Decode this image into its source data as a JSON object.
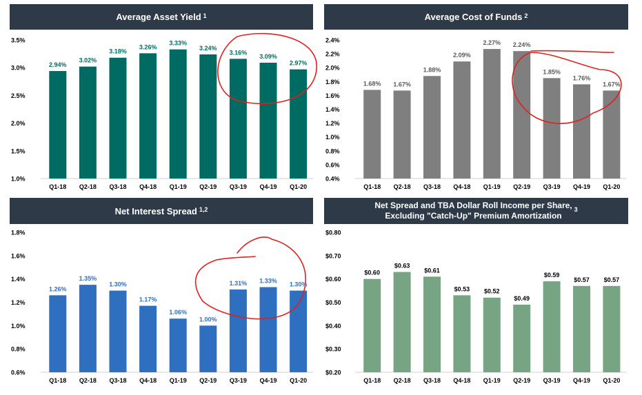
{
  "colors": {
    "header_bg": "#2e3a48",
    "annotation": "#e0201b"
  },
  "chart_data": [
    {
      "type": "bar",
      "title": "Average Asset Yield",
      "title_note": "1",
      "categories": [
        "Q1-18",
        "Q2-18",
        "Q3-18",
        "Q4-18",
        "Q1-19",
        "Q2-19",
        "Q3-19",
        "Q4-19",
        "Q1-20"
      ],
      "values": [
        2.94,
        3.02,
        3.18,
        3.26,
        3.33,
        3.24,
        3.16,
        3.09,
        2.97
      ],
      "value_labels": [
        "2.94%",
        "3.02%",
        "3.18%",
        "3.26%",
        "3.33%",
        "3.24%",
        "3.16%",
        "3.09%",
        "2.97%"
      ],
      "ylim": [
        1.0,
        3.5
      ],
      "yticks": [
        1.0,
        1.5,
        2.0,
        2.5,
        3.0,
        3.5
      ],
      "ytick_labels": [
        "1.0%",
        "1.5%",
        "2.0%",
        "2.5%",
        "3.0%",
        "3.5%"
      ],
      "bar_color": "#006b62",
      "label_color": "#006b62",
      "grid": false,
      "annotation": "hand-drawn red circle around Q3-19 to Q1-20"
    },
    {
      "type": "bar",
      "title": "Average Cost of Funds",
      "title_note": "2",
      "categories": [
        "Q1-18",
        "Q2-18",
        "Q3-18",
        "Q4-18",
        "Q1-19",
        "Q2-19",
        "Q3-19",
        "Q4-19",
        "Q1-20"
      ],
      "values": [
        1.68,
        1.67,
        1.88,
        2.09,
        2.27,
        2.24,
        1.85,
        1.76,
        1.67
      ],
      "value_labels": [
        "1.68%",
        "1.67%",
        "1.88%",
        "2.09%",
        "2.27%",
        "2.24%",
        "1.85%",
        "1.76%",
        "1.67%"
      ],
      "ylim": [
        0.4,
        2.4
      ],
      "yticks": [
        0.4,
        0.6,
        0.8,
        1.0,
        1.2,
        1.4,
        1.6,
        1.8,
        2.0,
        2.2,
        2.4
      ],
      "ytick_labels": [
        "0.4%",
        "0.6%",
        "0.8%",
        "1.0%",
        "1.2%",
        "1.4%",
        "1.6%",
        "1.8%",
        "2.0%",
        "2.2%",
        "2.4%"
      ],
      "bar_color": "#7f7f7f",
      "label_color": "#595959",
      "grid": false,
      "annotation": "hand-drawn red circle around Q2-19 to Q1-20"
    },
    {
      "type": "bar",
      "title": "Net Interest Spread",
      "title_note": "1,2",
      "categories": [
        "Q1-18",
        "Q2-18",
        "Q3-18",
        "Q4-18",
        "Q1-19",
        "Q2-19",
        "Q3-19",
        "Q4-19",
        "Q1-20"
      ],
      "values": [
        1.26,
        1.35,
        1.3,
        1.17,
        1.06,
        1.0,
        1.31,
        1.33,
        1.3
      ],
      "value_labels": [
        "1.26%",
        "1.35%",
        "1.30%",
        "1.17%",
        "1.06%",
        "1.00%",
        "1.31%",
        "1.33%",
        "1.30%"
      ],
      "ylim": [
        0.6,
        1.8
      ],
      "yticks": [
        0.6,
        0.8,
        1.0,
        1.2,
        1.4,
        1.6,
        1.8
      ],
      "ytick_labels": [
        "0.6%",
        "0.8%",
        "1.0%",
        "1.2%",
        "1.4%",
        "1.6%",
        "1.8%"
      ],
      "bar_color": "#2f6fbf",
      "label_color": "#2f6fbf",
      "grid": false,
      "annotation": "hand-drawn red circle around Q3-19 to Q1-20"
    },
    {
      "type": "bar",
      "title": "Net Spread and TBA Dollar Roll Income per Share,\nExcluding \"Catch-Up\" Premium Amortization",
      "title_note": "3",
      "categories": [
        "Q1-18",
        "Q2-18",
        "Q3-18",
        "Q4-18",
        "Q1-19",
        "Q2-19",
        "Q3-19",
        "Q4-19",
        "Q1-20"
      ],
      "values": [
        0.6,
        0.63,
        0.61,
        0.53,
        0.52,
        0.49,
        0.59,
        0.57,
        0.57
      ],
      "value_labels": [
        "$0.60",
        "$0.63",
        "$0.61",
        "$0.53",
        "$0.52",
        "$0.49",
        "$0.59",
        "$0.57",
        "$0.57"
      ],
      "ylim": [
        0.2,
        0.8
      ],
      "yticks": [
        0.2,
        0.3,
        0.4,
        0.5,
        0.6,
        0.7,
        0.8
      ],
      "ytick_labels": [
        "$0.20",
        "$0.30",
        "$0.40",
        "$0.50",
        "$0.60",
        "$0.70",
        "$0.80"
      ],
      "bar_color": "#77a482",
      "label_color": "#000000",
      "grid": false
    }
  ]
}
